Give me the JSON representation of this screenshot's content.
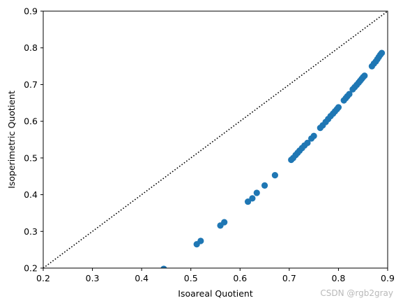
{
  "chart_data": {
    "type": "scatter",
    "title": "",
    "xlabel": "Isoareal Quotient",
    "ylabel": "Isoperimetric Quotient",
    "xlim": [
      0.2,
      0.9
    ],
    "ylim": [
      0.2,
      0.9
    ],
    "x_ticks": [
      "0.2",
      "0.3",
      "0.4",
      "0.5",
      "0.6",
      "0.7",
      "0.8",
      "0.9"
    ],
    "y_ticks": [
      "0.2",
      "0.3",
      "0.4",
      "0.5",
      "0.6",
      "0.7",
      "0.8",
      "0.9"
    ],
    "grid": false,
    "reference_line": {
      "style": "dotted",
      "from": [
        0.2,
        0.2
      ],
      "to": [
        0.9,
        0.9
      ]
    },
    "marker_color": "#1f77b4",
    "series": [
      {
        "points": [
          [
            0.445,
            0.198
          ],
          [
            0.512,
            0.265
          ],
          [
            0.52,
            0.274
          ],
          [
            0.56,
            0.316
          ],
          [
            0.568,
            0.325
          ],
          [
            0.616,
            0.381
          ],
          [
            0.625,
            0.39
          ],
          [
            0.634,
            0.405
          ],
          [
            0.65,
            0.425
          ],
          [
            0.671,
            0.453
          ],
          [
            0.704,
            0.495
          ],
          [
            0.708,
            0.5
          ],
          [
            0.713,
            0.508
          ],
          [
            0.717,
            0.514
          ],
          [
            0.721,
            0.52
          ],
          [
            0.726,
            0.527
          ],
          [
            0.731,
            0.534
          ],
          [
            0.737,
            0.541
          ],
          [
            0.745,
            0.553
          ],
          [
            0.75,
            0.56
          ],
          [
            0.763,
            0.582
          ],
          [
            0.768,
            0.589
          ],
          [
            0.774,
            0.598
          ],
          [
            0.779,
            0.606
          ],
          [
            0.784,
            0.614
          ],
          [
            0.789,
            0.621
          ],
          [
            0.793,
            0.627
          ],
          [
            0.797,
            0.633
          ],
          [
            0.8,
            0.638
          ],
          [
            0.811,
            0.657
          ],
          [
            0.815,
            0.663
          ],
          [
            0.818,
            0.668
          ],
          [
            0.822,
            0.674
          ],
          [
            0.829,
            0.687
          ],
          [
            0.833,
            0.693
          ],
          [
            0.837,
            0.699
          ],
          [
            0.841,
            0.705
          ],
          [
            0.844,
            0.71
          ],
          [
            0.847,
            0.715
          ],
          [
            0.85,
            0.72
          ],
          [
            0.853,
            0.724
          ],
          [
            0.868,
            0.75
          ],
          [
            0.872,
            0.757
          ],
          [
            0.876,
            0.763
          ],
          [
            0.879,
            0.769
          ],
          [
            0.882,
            0.775
          ],
          [
            0.885,
            0.781
          ],
          [
            0.888,
            0.786
          ]
        ]
      }
    ]
  },
  "watermark": "CSDN @rgb2gray"
}
